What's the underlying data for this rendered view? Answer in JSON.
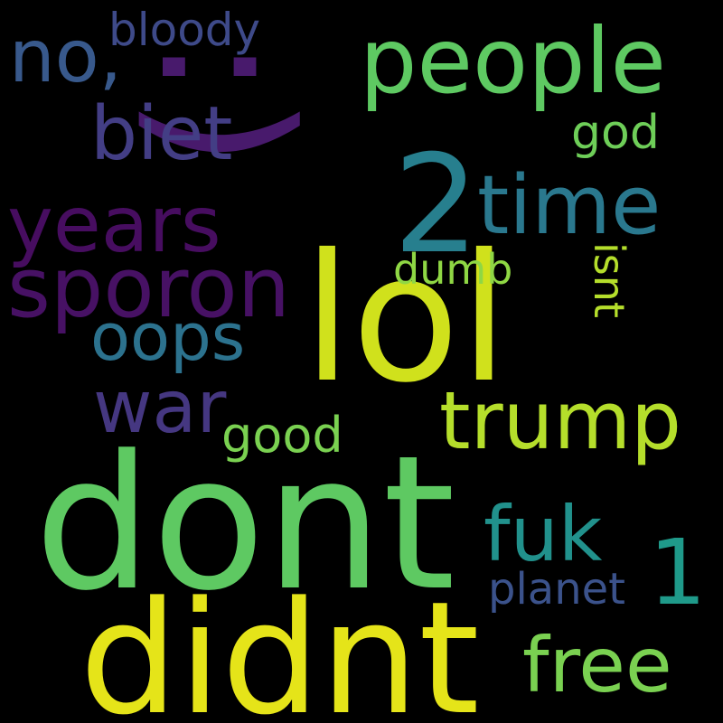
{
  "background": "#000000",
  "words": [
    {
      "text": "dont",
      "color": "#5ec962"
    },
    {
      "text": "didnt",
      "color": "#e5e419"
    },
    {
      "text": "lol",
      "color": "#d0e11c"
    },
    {
      "text": "2",
      "color": "#277f8e"
    },
    {
      "text": "people",
      "color": "#5ec962"
    },
    {
      "text": ":)",
      "color": "#481a6c"
    },
    {
      "text": "time",
      "color": "#2a788e"
    },
    {
      "text": "sporon",
      "color": "#471164"
    },
    {
      "text": "years",
      "color": "#470d60"
    },
    {
      "text": "biet",
      "color": "#433e85"
    },
    {
      "text": "no,",
      "color": "#38598c"
    },
    {
      "text": "trump",
      "color": "#b5de2b"
    },
    {
      "text": "fuk",
      "color": "#21918c"
    },
    {
      "text": "1",
      "color": "#1f9a8a"
    },
    {
      "text": "oops",
      "color": "#2c728e"
    },
    {
      "text": "war",
      "color": "#453781"
    },
    {
      "text": "free",
      "color": "#7ad151"
    },
    {
      "text": "planet",
      "color": "#3b528b"
    },
    {
      "text": "good",
      "color": "#7ad151"
    },
    {
      "text": "bloody",
      "color": "#3e4a89"
    },
    {
      "text": "god",
      "color": "#6ece58"
    },
    {
      "text": "dumb",
      "color": "#8fd744"
    },
    {
      "text": "isnt",
      "color": "#b5de2b"
    }
  ]
}
